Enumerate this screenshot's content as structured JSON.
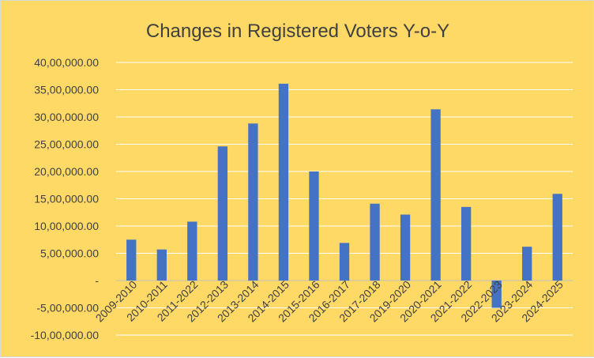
{
  "chart_data": {
    "type": "bar",
    "title": "Changes in Registered Voters  Y-o-Y",
    "xlabel": "",
    "ylabel": "",
    "categories": [
      "2009-2010",
      "2010-2011",
      "2011-2022",
      "2012-2013",
      "2013-2014",
      "2014-2015",
      "2015-2016",
      "2016-2017",
      "2017-2018",
      "2019-2020",
      "2020-2021",
      "2021-2022",
      "2022-2023",
      "2023-2024",
      "2024-2025"
    ],
    "values": [
      750000,
      570000,
      1080000,
      2460000,
      2880000,
      3610000,
      2000000,
      690000,
      1410000,
      1210000,
      3140000,
      1350000,
      -500000,
      620000,
      1590000
    ],
    "ylim": [
      -1000000,
      4000000
    ],
    "yticks": [
      4000000,
      3500000,
      3000000,
      2500000,
      2000000,
      1500000,
      1000000,
      500000,
      0,
      -500000,
      -1000000
    ],
    "ytick_labels": [
      "40,00,000.00",
      "35,00,000.00",
      "30,00,000.00",
      "25,00,000.00",
      "20,00,000.00",
      "15,00,000.00",
      "10,00,000.00",
      "5,00,000.00",
      "-",
      "-5,00,000.00",
      "-10,00,000.00"
    ],
    "grid": true,
    "legend": "none",
    "colors": {
      "bar": "#4472c4",
      "background": "#ffd966",
      "gridline": "#ffffff",
      "text": "#404040"
    }
  }
}
